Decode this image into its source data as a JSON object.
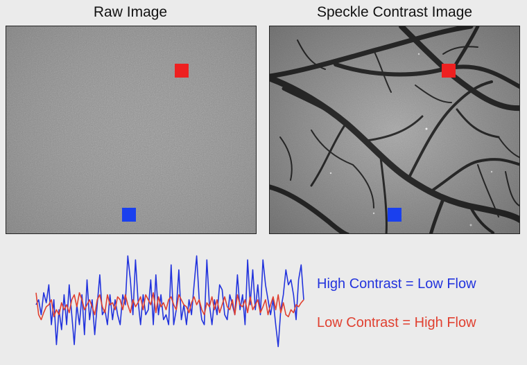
{
  "titles": {
    "raw": "Raw Image",
    "speckle": "Speckle Contrast Image"
  },
  "colors": {
    "background": "#ebebeb",
    "high_flow_roi": "#ee2020",
    "low_flow_roi": "#1a40ee",
    "high_contrast_trace": "#2233dd",
    "low_contrast_trace": "#e04030"
  },
  "legend": {
    "high": "High Contrast = Low Flow",
    "low": "Low Contrast = High Flow"
  },
  "chart_data": {
    "type": "line",
    "title": "",
    "xlabel": "",
    "ylabel": "",
    "ylim": [
      0,
      1
    ],
    "series": [
      {
        "name": "High Contrast = Low Flow",
        "color": "#2233dd",
        "values": [
          0.5,
          0.55,
          0.4,
          0.62,
          0.52,
          0.7,
          0.3,
          0.55,
          0.1,
          0.45,
          0.25,
          0.6,
          0.3,
          0.7,
          0.4,
          0.1,
          0.5,
          0.3,
          0.6,
          0.2,
          0.75,
          0.35,
          0.55,
          0.2,
          0.5,
          0.8,
          0.4,
          0.45,
          0.3,
          0.6,
          0.35,
          0.55,
          0.4,
          0.3,
          0.6,
          0.5,
          0.99,
          0.75,
          0.4,
          0.95,
          0.55,
          0.3,
          0.6,
          0.4,
          0.45,
          0.75,
          0.3,
          0.8,
          0.4,
          0.6,
          0.35,
          0.4,
          0.3,
          0.9,
          0.3,
          0.45,
          0.85,
          0.35,
          0.5,
          0.3,
          0.55,
          0.4,
          0.7,
          0.99,
          0.55,
          0.35,
          0.3,
          0.95,
          0.5,
          0.3,
          0.55,
          0.4,
          0.7,
          0.65,
          0.4,
          0.35,
          0.6,
          0.5,
          0.4,
          0.8,
          0.45,
          0.6,
          0.3,
          0.95,
          0.5,
          0.85,
          0.45,
          0.7,
          0.4,
          0.95,
          0.7,
          0.55,
          0.4,
          0.55,
          0.3,
          0.08,
          0.45,
          0.6,
          0.85,
          0.7,
          0.75,
          0.6,
          0.35,
          0.75,
          0.9,
          0.55
        ]
      },
      {
        "name": "Low Contrast = High Flow",
        "color": "#e04030",
        "values": [
          0.62,
          0.4,
          0.35,
          0.42,
          0.48,
          0.5,
          0.55,
          0.38,
          0.45,
          0.4,
          0.52,
          0.45,
          0.5,
          0.42,
          0.55,
          0.6,
          0.48,
          0.62,
          0.55,
          0.45,
          0.5,
          0.55,
          0.48,
          0.4,
          0.55,
          0.6,
          0.48,
          0.42,
          0.6,
          0.5,
          0.52,
          0.45,
          0.58,
          0.55,
          0.45,
          0.6,
          0.5,
          0.42,
          0.55,
          0.48,
          0.52,
          0.58,
          0.45,
          0.6,
          0.55,
          0.5,
          0.62,
          0.42,
          0.58,
          0.48,
          0.52,
          0.45,
          0.55,
          0.58,
          0.5,
          0.45,
          0.6,
          0.55,
          0.5,
          0.48,
          0.42,
          0.52,
          0.58,
          0.5,
          0.55,
          0.45,
          0.4,
          0.52,
          0.48,
          0.58,
          0.45,
          0.55,
          0.42,
          0.5,
          0.58,
          0.48,
          0.45,
          0.55,
          0.4,
          0.6,
          0.5,
          0.48,
          0.55,
          0.42,
          0.58,
          0.45,
          0.5,
          0.55,
          0.42,
          0.48,
          0.55,
          0.4,
          0.5,
          0.58,
          0.45,
          0.6,
          0.42,
          0.52,
          0.4,
          0.38,
          0.45,
          0.42,
          0.5,
          0.48,
          0.52,
          0.55
        ]
      }
    ]
  }
}
